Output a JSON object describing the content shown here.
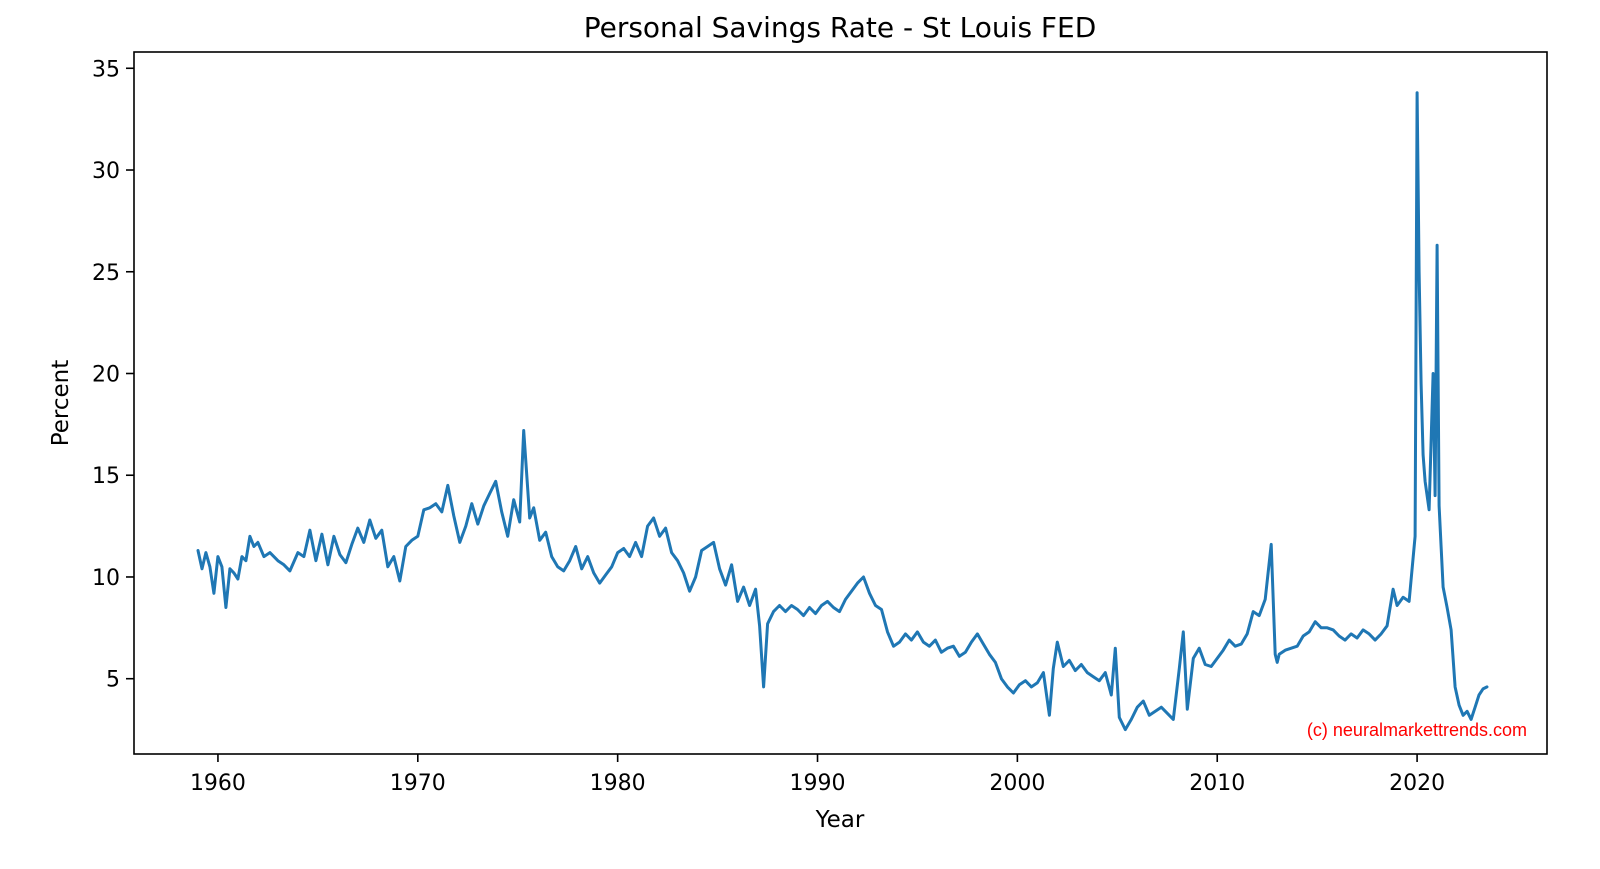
{
  "chart_data": {
    "type": "line",
    "title": "Personal Savings Rate - St Louis FED",
    "xlabel": "Year",
    "ylabel": "Percent",
    "xlim": [
      1955.8,
      2026.5
    ],
    "ylim": [
      1.3,
      35.8
    ],
    "xticks": [
      1960,
      1970,
      1980,
      1990,
      2000,
      2010,
      2020
    ],
    "yticks": [
      5,
      10,
      15,
      20,
      25,
      30,
      35
    ],
    "grid": false,
    "legend": "none",
    "line_color": "#1f77b4",
    "watermark": "(c) neuralmarkettrends.com",
    "watermark_color": "#ff0000",
    "series": [
      {
        "x": [
          1959.0,
          1959.2,
          1959.4,
          1959.6,
          1959.8,
          1960.0,
          1960.2,
          1960.4,
          1960.6,
          1960.8,
          1961.0,
          1961.2,
          1961.4,
          1961.6,
          1961.8,
          1962.0,
          1962.3,
          1962.6,
          1963.0,
          1963.3,
          1963.6,
          1964.0,
          1964.3,
          1964.6,
          1964.9,
          1965.2,
          1965.5,
          1965.8,
          1966.1,
          1966.4,
          1966.7,
          1967.0,
          1967.3,
          1967.6,
          1967.9,
          1968.2,
          1968.5,
          1968.8,
          1969.1,
          1969.4,
          1969.7,
          1970.0,
          1970.3,
          1970.6,
          1970.9,
          1971.2,
          1971.5,
          1971.8,
          1972.1,
          1972.4,
          1972.7,
          1973.0,
          1973.3,
          1973.6,
          1973.9,
          1974.2,
          1974.5,
          1974.8,
          1975.1,
          1975.3,
          1975.6,
          1975.8,
          1976.1,
          1976.4,
          1976.7,
          1977.0,
          1977.3,
          1977.6,
          1977.9,
          1978.2,
          1978.5,
          1978.8,
          1979.1,
          1979.4,
          1979.7,
          1980.0,
          1980.3,
          1980.6,
          1980.9,
          1981.2,
          1981.5,
          1981.8,
          1982.1,
          1982.4,
          1982.7,
          1983.0,
          1983.3,
          1983.6,
          1983.9,
          1984.2,
          1984.5,
          1984.8,
          1985.1,
          1985.4,
          1985.7,
          1986.0,
          1986.3,
          1986.6,
          1986.9,
          1987.1,
          1987.3,
          1987.5,
          1987.8,
          1988.1,
          1988.4,
          1988.7,
          1989.0,
          1989.3,
          1989.6,
          1989.9,
          1990.2,
          1990.5,
          1990.8,
          1991.1,
          1991.4,
          1991.7,
          1992.0,
          1992.3,
          1992.6,
          1992.9,
          1993.2,
          1993.5,
          1993.8,
          1994.1,
          1994.4,
          1994.7,
          1995.0,
          1995.3,
          1995.6,
          1995.9,
          1996.2,
          1996.5,
          1996.8,
          1997.1,
          1997.4,
          1997.7,
          1998.0,
          1998.3,
          1998.6,
          1998.9,
          1999.2,
          1999.5,
          1999.8,
          2000.1,
          2000.4,
          2000.7,
          2001.0,
          2001.3,
          2001.6,
          2001.8,
          2002.0,
          2002.3,
          2002.6,
          2002.9,
          2003.2,
          2003.5,
          2003.8,
          2004.1,
          2004.4,
          2004.7,
          2004.9,
          2005.1,
          2005.4,
          2005.7,
          2006.0,
          2006.3,
          2006.6,
          2006.9,
          2007.2,
          2007.5,
          2007.8,
          2008.1,
          2008.3,
          2008.5,
          2008.8,
          2009.1,
          2009.4,
          2009.7,
          2010.0,
          2010.3,
          2010.6,
          2010.9,
          2011.2,
          2011.5,
          2011.8,
          2012.1,
          2012.4,
          2012.7,
          2012.9,
          2013.0,
          2013.1,
          2013.4,
          2013.7,
          2014.0,
          2014.3,
          2014.6,
          2014.9,
          2015.2,
          2015.5,
          2015.8,
          2016.1,
          2016.4,
          2016.7,
          2017.0,
          2017.3,
          2017.6,
          2017.9,
          2018.2,
          2018.5,
          2018.8,
          2019.0,
          2019.3,
          2019.6,
          2019.9,
          2020.0,
          2020.1,
          2020.2,
          2020.3,
          2020.4,
          2020.6,
          2020.8,
          2020.9,
          2021.0,
          2021.1,
          2021.2,
          2021.3,
          2021.5,
          2021.7,
          2021.9,
          2022.1,
          2022.3,
          2022.5,
          2022.7,
          2022.9,
          2023.1,
          2023.3,
          2023.5
        ],
        "y": [
          11.3,
          10.4,
          11.2,
          10.5,
          9.2,
          11.0,
          10.5,
          8.5,
          10.4,
          10.2,
          9.9,
          11.0,
          10.8,
          12.0,
          11.5,
          11.7,
          11.0,
          11.2,
          10.8,
          10.6,
          10.3,
          11.2,
          11.0,
          12.3,
          10.8,
          12.1,
          10.6,
          12.0,
          11.1,
          10.7,
          11.6,
          12.4,
          11.7,
          12.8,
          11.9,
          12.3,
          10.5,
          11.0,
          9.8,
          11.5,
          11.8,
          12.0,
          13.3,
          13.4,
          13.6,
          13.2,
          14.5,
          13.0,
          11.7,
          12.5,
          13.6,
          12.6,
          13.5,
          14.1,
          14.7,
          13.2,
          12.0,
          13.8,
          12.7,
          17.2,
          12.9,
          13.4,
          11.8,
          12.2,
          11.0,
          10.5,
          10.3,
          10.8,
          11.5,
          10.4,
          11.0,
          10.2,
          9.7,
          10.1,
          10.5,
          11.2,
          11.4,
          11.0,
          11.7,
          11.0,
          12.5,
          12.9,
          12.0,
          12.4,
          11.2,
          10.8,
          10.2,
          9.3,
          10.0,
          11.3,
          11.5,
          11.7,
          10.4,
          9.6,
          10.6,
          8.8,
          9.5,
          8.6,
          9.4,
          7.6,
          4.6,
          7.7,
          8.3,
          8.6,
          8.3,
          8.6,
          8.4,
          8.1,
          8.5,
          8.2,
          8.6,
          8.8,
          8.5,
          8.3,
          8.9,
          9.3,
          9.7,
          10.0,
          9.2,
          8.6,
          8.4,
          7.3,
          6.6,
          6.8,
          7.2,
          6.9,
          7.3,
          6.8,
          6.6,
          6.9,
          6.3,
          6.5,
          6.6,
          6.1,
          6.3,
          6.8,
          7.2,
          6.7,
          6.2,
          5.8,
          5.0,
          4.6,
          4.3,
          4.7,
          4.9,
          4.6,
          4.8,
          5.3,
          3.2,
          5.5,
          6.8,
          5.6,
          5.9,
          5.4,
          5.7,
          5.3,
          5.1,
          4.9,
          5.3,
          4.2,
          6.5,
          3.1,
          2.5,
          3.0,
          3.6,
          3.9,
          3.2,
          3.4,
          3.6,
          3.3,
          3.0,
          5.5,
          7.3,
          3.5,
          6.0,
          6.5,
          5.7,
          5.6,
          6.0,
          6.4,
          6.9,
          6.6,
          6.7,
          7.2,
          8.3,
          8.1,
          8.9,
          11.6,
          6.2,
          5.8,
          6.2,
          6.4,
          6.5,
          6.6,
          7.1,
          7.3,
          7.8,
          7.5,
          7.5,
          7.4,
          7.1,
          6.9,
          7.2,
          7.0,
          7.4,
          7.2,
          6.9,
          7.2,
          7.6,
          9.4,
          8.6,
          9.0,
          8.8,
          12.0,
          33.8,
          25.0,
          19.5,
          16.0,
          14.7,
          13.3,
          20.0,
          14.0,
          26.3,
          13.5,
          11.5,
          9.5,
          8.5,
          7.4,
          4.6,
          3.7,
          3.2,
          3.4,
          3.0,
          3.6,
          4.2,
          4.5,
          4.6
        ]
      }
    ]
  }
}
